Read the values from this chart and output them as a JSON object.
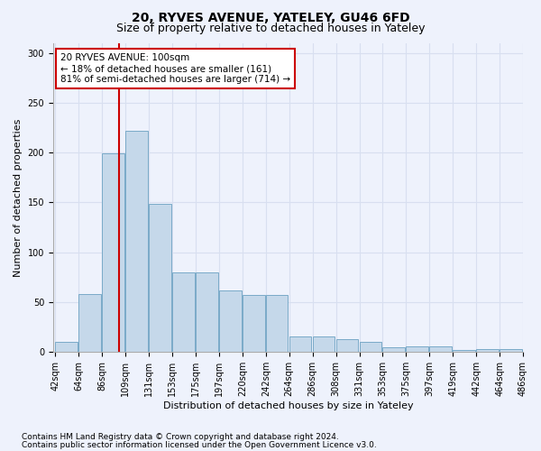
{
  "title_line1": "20, RYVES AVENUE, YATELEY, GU46 6FD",
  "title_line2": "Size of property relative to detached houses in Yateley",
  "xlabel": "Distribution of detached houses by size in Yateley",
  "ylabel": "Number of detached properties",
  "footer_line1": "Contains HM Land Registry data © Crown copyright and database right 2024.",
  "footer_line2": "Contains public sector information licensed under the Open Government Licence v3.0.",
  "annotation_line1": "20 RYVES AVENUE: 100sqm",
  "annotation_line2": "← 18% of detached houses are smaller (161)",
  "annotation_line3": "81% of semi-detached houses are larger (714) →",
  "bar_heights": [
    10,
    58,
    199,
    222,
    149,
    80,
    80,
    62,
    57,
    57,
    16,
    16,
    13,
    10,
    5,
    6,
    6,
    2,
    3,
    3
  ],
  "xtick_labels": [
    "42sqm",
    "64sqm",
    "86sqm",
    "109sqm",
    "131sqm",
    "153sqm",
    "175sqm",
    "197sqm",
    "220sqm",
    "242sqm",
    "264sqm",
    "286sqm",
    "308sqm",
    "331sqm",
    "353sqm",
    "375sqm",
    "397sqm",
    "419sqm",
    "442sqm",
    "464sqm",
    "486sqm"
  ],
  "bar_color": "#c5d8ea",
  "bar_edge_color": "#7aaac8",
  "vline_color": "#cc0000",
  "vline_bar_index": 2.72,
  "ylim": [
    0,
    310
  ],
  "yticks": [
    0,
    50,
    100,
    150,
    200,
    250,
    300
  ],
  "grid_color": "#d8dff0",
  "background_color": "#eef2fc",
  "annotation_box_facecolor": "#ffffff",
  "annotation_box_edgecolor": "#cc0000",
  "title_fontsize": 10,
  "subtitle_fontsize": 9,
  "axis_label_fontsize": 8,
  "tick_fontsize": 7,
  "annotation_fontsize": 7.5,
  "footer_fontsize": 6.5
}
